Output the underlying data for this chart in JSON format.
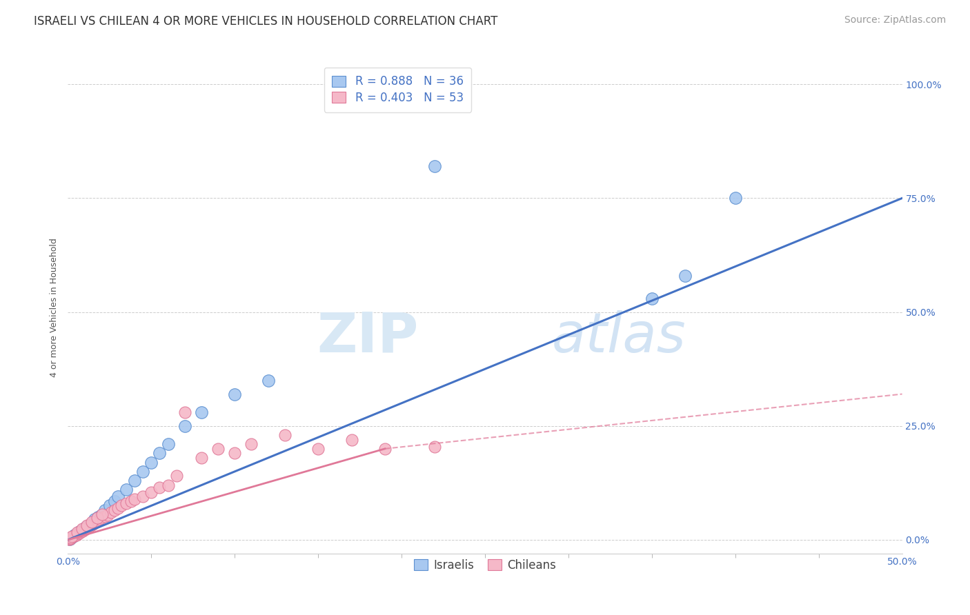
{
  "title": "ISRAELI VS CHILEAN 4 OR MORE VEHICLES IN HOUSEHOLD CORRELATION CHART",
  "source": "Source: ZipAtlas.com",
  "ylabel": "4 or more Vehicles in Household",
  "yticks": [
    "0.0%",
    "25.0%",
    "50.0%",
    "75.0%",
    "100.0%"
  ],
  "ytick_vals": [
    0.0,
    25.0,
    50.0,
    75.0,
    100.0
  ],
  "xmin": 0.0,
  "xmax": 50.0,
  "ymin": -3.0,
  "ymax": 105.0,
  "legend_line1": "R = 0.888   N = 36",
  "legend_line2": "R = 0.403   N = 53",
  "legend_label_israelis": "Israelis",
  "legend_label_chileans": "Chileans",
  "color_israeli_fill": "#A8C8F0",
  "color_israeli_edge": "#5B8FD0",
  "color_chilean_fill": "#F5B8C8",
  "color_chilean_edge": "#E07898",
  "color_line_israeli": "#4472C4",
  "color_line_chilean": "#E07898",
  "color_text_blue": "#4472C4",
  "background_color": "#FFFFFF",
  "watermark_zip": "ZIP",
  "watermark_atlas": "atlas",
  "title_fontsize": 12,
  "axis_label_fontsize": 9,
  "tick_fontsize": 10,
  "legend_fontsize": 12,
  "source_fontsize": 10,
  "israeli_x": [
    0.1,
    0.2,
    0.3,
    0.4,
    0.5,
    0.6,
    0.7,
    0.8,
    0.9,
    1.0,
    1.1,
    1.2,
    1.3,
    1.4,
    1.5,
    1.6,
    1.8,
    2.0,
    2.2,
    2.5,
    2.8,
    3.0,
    3.5,
    4.0,
    4.5,
    5.0,
    5.5,
    6.0,
    7.0,
    8.0,
    10.0,
    12.0,
    22.0,
    35.0,
    37.0,
    40.0
  ],
  "israeli_y": [
    0.2,
    0.5,
    0.8,
    1.0,
    1.2,
    1.5,
    1.8,
    2.0,
    2.2,
    2.5,
    2.8,
    3.0,
    3.2,
    3.5,
    4.0,
    4.5,
    5.0,
    5.5,
    6.5,
    7.5,
    8.5,
    9.5,
    11.0,
    13.0,
    15.0,
    17.0,
    19.0,
    21.0,
    25.0,
    28.0,
    32.0,
    35.0,
    82.0,
    53.0,
    58.0,
    75.0
  ],
  "chilean_x": [
    0.05,
    0.1,
    0.15,
    0.2,
    0.3,
    0.4,
    0.5,
    0.6,
    0.7,
    0.8,
    0.9,
    1.0,
    1.1,
    1.2,
    1.3,
    1.4,
    1.5,
    1.6,
    1.7,
    1.8,
    1.9,
    2.0,
    2.2,
    2.4,
    2.6,
    2.8,
    3.0,
    3.2,
    3.5,
    3.8,
    4.0,
    4.5,
    5.0,
    5.5,
    6.0,
    6.5,
    7.0,
    8.0,
    9.0,
    10.0,
    11.0,
    13.0,
    15.0,
    17.0,
    19.0,
    22.0,
    0.25,
    0.55,
    0.85,
    1.15,
    1.45,
    1.75,
    2.05
  ],
  "chilean_y": [
    0.1,
    0.2,
    0.3,
    0.5,
    0.7,
    0.9,
    1.1,
    1.3,
    1.5,
    1.8,
    2.0,
    2.2,
    2.5,
    2.8,
    3.0,
    3.2,
    3.5,
    3.8,
    4.0,
    4.2,
    4.5,
    4.8,
    5.2,
    5.5,
    6.0,
    6.5,
    7.0,
    7.5,
    8.0,
    8.5,
    9.0,
    9.5,
    10.5,
    11.5,
    12.0,
    14.0,
    28.0,
    18.0,
    20.0,
    19.0,
    21.0,
    23.0,
    20.0,
    22.0,
    20.0,
    20.5,
    0.8,
    1.6,
    2.4,
    3.2,
    4.0,
    4.8,
    5.6
  ],
  "isr_trend_x0": 0.0,
  "isr_trend_y0": 0.0,
  "isr_trend_x1": 50.0,
  "isr_trend_y1": 75.0,
  "chl_solid_x0": 0.0,
  "chl_solid_y0": 0.0,
  "chl_solid_x1": 19.0,
  "chl_solid_y1": 20.0,
  "chl_dash_x0": 19.0,
  "chl_dash_y0": 20.0,
  "chl_dash_x1": 50.0,
  "chl_dash_y1": 32.0
}
